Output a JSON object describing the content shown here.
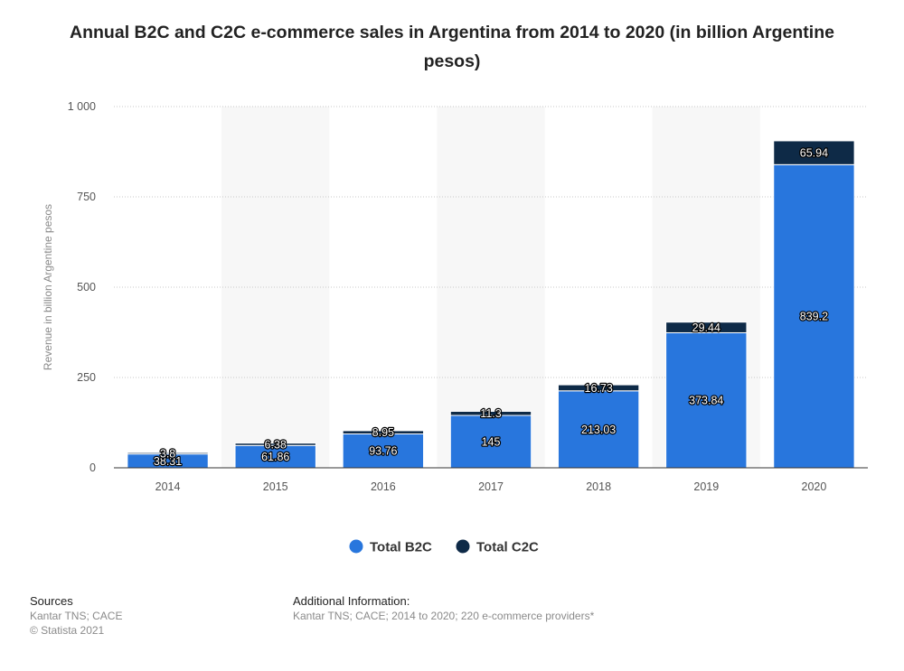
{
  "chart_data": {
    "type": "bar",
    "stacked": true,
    "title": "Annual B2C and C2C e-commerce sales in Argentina from 2014 to 2020 (in billion Argentine pesos)",
    "xlabel": "",
    "ylabel": "Revenue in billion Argentine pesos",
    "categories": [
      "2014",
      "2015",
      "2016",
      "2017",
      "2018",
      "2019",
      "2020"
    ],
    "series": [
      {
        "name": "Total B2C",
        "color": "#2876dd",
        "values": [
          38.31,
          61.86,
          93.76,
          145,
          213.03,
          373.84,
          839.2
        ]
      },
      {
        "name": "Total C2C",
        "color": "#0e2a47",
        "values": [
          3.8,
          6.38,
          8.95,
          11.3,
          16.73,
          29.44,
          65.94
        ]
      }
    ],
    "ylim": [
      0,
      1000
    ],
    "yticks": [
      0,
      250,
      500,
      750,
      1000
    ],
    "ytick_labels": [
      "0",
      "250",
      "500",
      "750",
      "1 000"
    ],
    "grid": true,
    "legend_position": "bottom-center"
  },
  "footer": {
    "sources_heading": "Sources",
    "sources_lines": [
      "Kantar TNS; CACE",
      "© Statista 2021"
    ],
    "info_heading": "Additional Information:",
    "info_line": "Kantar TNS; CACE; 2014 to 2020; 220 e-commerce providers*"
  }
}
